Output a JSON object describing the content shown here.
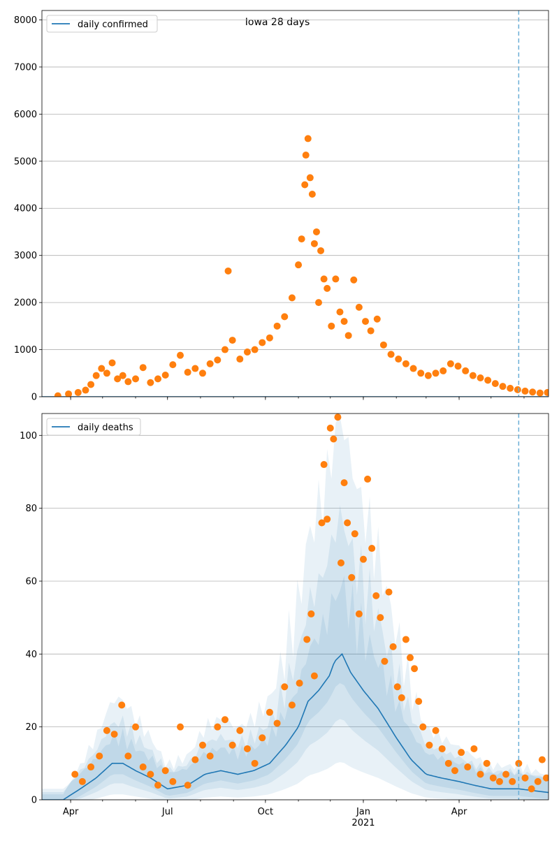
{
  "title": "Iowa 28 days",
  "x_ticks": [
    {
      "date": "2020-04-01",
      "label": "Apr"
    },
    {
      "date": "2020-07-01",
      "label": "Jul"
    },
    {
      "date": "2020-10-01",
      "label": "Oct"
    },
    {
      "date": "2021-01-01",
      "label": "Jan"
    },
    {
      "date": "2021-04-01",
      "label": "Apr"
    }
  ],
  "x_year_label": "2021",
  "chart_data": [
    {
      "type": "scatter",
      "legend": "daily confirmed",
      "legend_position": "upper-left",
      "grid": "y",
      "xlim": [
        "2020-03-05",
        "2021-06-24"
      ],
      "ylim": [
        0,
        8200
      ],
      "yticks": [
        0,
        1000,
        2000,
        3000,
        4000,
        5000,
        6000,
        7000,
        8000
      ],
      "forecast_start": "2021-05-27",
      "colors": {
        "line": "#1f77b4",
        "points": "#ff7f0e",
        "forecast_line": "#6aaed6"
      },
      "series": [
        {
          "name": "daily confirmed",
          "kind": "line",
          "x": [
            "2020-03-05",
            "2021-06-24"
          ],
          "y": [
            0,
            0
          ]
        },
        {
          "kind": "points",
          "points": [
            [
              "2020-03-20",
              20
            ],
            [
              "2020-03-30",
              60
            ],
            [
              "2020-04-08",
              90
            ],
            [
              "2020-04-15",
              140
            ],
            [
              "2020-04-20",
              260
            ],
            [
              "2020-04-25",
              450
            ],
            [
              "2020-04-30",
              600
            ],
            [
              "2020-05-05",
              500
            ],
            [
              "2020-05-10",
              720
            ],
            [
              "2020-05-15",
              380
            ],
            [
              "2020-05-20",
              450
            ],
            [
              "2020-05-25",
              320
            ],
            [
              "2020-06-01",
              380
            ],
            [
              "2020-06-08",
              620
            ],
            [
              "2020-06-15",
              300
            ],
            [
              "2020-06-22",
              380
            ],
            [
              "2020-06-29",
              460
            ],
            [
              "2020-07-06",
              680
            ],
            [
              "2020-07-13",
              880
            ],
            [
              "2020-07-20",
              520
            ],
            [
              "2020-07-27",
              600
            ],
            [
              "2020-08-03",
              500
            ],
            [
              "2020-08-10",
              700
            ],
            [
              "2020-08-17",
              780
            ],
            [
              "2020-08-24",
              1000
            ],
            [
              "2020-08-27",
              2670
            ],
            [
              "2020-08-31",
              1200
            ],
            [
              "2020-09-07",
              800
            ],
            [
              "2020-09-14",
              950
            ],
            [
              "2020-09-21",
              1000
            ],
            [
              "2020-09-28",
              1150
            ],
            [
              "2020-10-05",
              1250
            ],
            [
              "2020-10-12",
              1500
            ],
            [
              "2020-10-19",
              1700
            ],
            [
              "2020-10-26",
              2100
            ],
            [
              "2020-11-01",
              2800
            ],
            [
              "2020-11-04",
              3350
            ],
            [
              "2020-11-07",
              4500
            ],
            [
              "2020-11-08",
              5130
            ],
            [
              "2020-11-10",
              5480
            ],
            [
              "2020-11-12",
              4650
            ],
            [
              "2020-11-14",
              4300
            ],
            [
              "2020-11-16",
              3250
            ],
            [
              "2020-11-18",
              3500
            ],
            [
              "2020-11-20",
              2000
            ],
            [
              "2020-11-22",
              3100
            ],
            [
              "2020-11-25",
              2500
            ],
            [
              "2020-11-28",
              2300
            ],
            [
              "2020-12-02",
              1500
            ],
            [
              "2020-12-06",
              2500
            ],
            [
              "2020-12-10",
              1800
            ],
            [
              "2020-12-14",
              1600
            ],
            [
              "2020-12-18",
              1300
            ],
            [
              "2020-12-23",
              2480
            ],
            [
              "2020-12-28",
              1900
            ],
            [
              "2021-01-03",
              1600
            ],
            [
              "2021-01-08",
              1400
            ],
            [
              "2021-01-14",
              1650
            ],
            [
              "2021-01-20",
              1100
            ],
            [
              "2021-01-27",
              900
            ],
            [
              "2021-02-03",
              800
            ],
            [
              "2021-02-10",
              700
            ],
            [
              "2021-02-17",
              600
            ],
            [
              "2021-02-24",
              500
            ],
            [
              "2021-03-03",
              450
            ],
            [
              "2021-03-10",
              500
            ],
            [
              "2021-03-17",
              550
            ],
            [
              "2021-03-24",
              700
            ],
            [
              "2021-03-31",
              650
            ],
            [
              "2021-04-07",
              550
            ],
            [
              "2021-04-14",
              450
            ],
            [
              "2021-04-21",
              400
            ],
            [
              "2021-04-28",
              350
            ],
            [
              "2021-05-05",
              280
            ],
            [
              "2021-05-12",
              220
            ],
            [
              "2021-05-19",
              180
            ],
            [
              "2021-05-26",
              150
            ],
            [
              "2021-06-02",
              120
            ],
            [
              "2021-06-09",
              100
            ],
            [
              "2021-06-16",
              80
            ],
            [
              "2021-06-23",
              90
            ]
          ]
        }
      ]
    },
    {
      "type": "line",
      "legend": "daily deaths",
      "legend_position": "upper-left",
      "grid": "y",
      "xlim": [
        "2020-03-05",
        "2021-06-24"
      ],
      "ylim": [
        0,
        106
      ],
      "yticks": [
        0,
        20,
        40,
        60,
        80,
        100
      ],
      "forecast_start": "2021-05-27",
      "colors": {
        "line": "#1f77b4",
        "points": "#ff7f0e",
        "band": "#1f77b4",
        "forecast_line": "#6aaed6"
      },
      "series": [
        {
          "name": "daily deaths",
          "kind": "line",
          "points": [
            [
              "2020-03-05",
              0
            ],
            [
              "2020-03-25",
              0
            ],
            [
              "2020-04-10",
              3
            ],
            [
              "2020-04-25",
              6
            ],
            [
              "2020-05-10",
              10
            ],
            [
              "2020-05-20",
              10
            ],
            [
              "2020-06-01",
              8
            ],
            [
              "2020-06-15",
              6
            ],
            [
              "2020-07-01",
              3
            ],
            [
              "2020-07-20",
              4
            ],
            [
              "2020-08-05",
              7
            ],
            [
              "2020-08-20",
              8
            ],
            [
              "2020-09-05",
              7
            ],
            [
              "2020-09-20",
              8
            ],
            [
              "2020-10-05",
              10
            ],
            [
              "2020-10-20",
              15
            ],
            [
              "2020-11-01",
              20
            ],
            [
              "2020-11-10",
              27
            ],
            [
              "2020-11-20",
              30
            ],
            [
              "2020-11-30",
              34
            ],
            [
              "2020-12-05",
              38
            ],
            [
              "2020-12-12",
              40
            ],
            [
              "2020-12-20",
              35
            ],
            [
              "2021-01-01",
              30
            ],
            [
              "2021-01-15",
              25
            ],
            [
              "2021-02-01",
              17
            ],
            [
              "2021-02-15",
              11
            ],
            [
              "2021-03-01",
              7
            ],
            [
              "2021-03-15",
              6
            ],
            [
              "2021-04-01",
              5
            ],
            [
              "2021-04-15",
              4
            ],
            [
              "2021-05-01",
              3
            ],
            [
              "2021-05-27",
              3
            ],
            [
              "2021-06-24",
              2
            ]
          ]
        },
        {
          "kind": "points",
          "points": [
            [
              "2020-04-05",
              7
            ],
            [
              "2020-04-12",
              5
            ],
            [
              "2020-04-20",
              9
            ],
            [
              "2020-04-28",
              12
            ],
            [
              "2020-05-05",
              19
            ],
            [
              "2020-05-12",
              18
            ],
            [
              "2020-05-19",
              26
            ],
            [
              "2020-05-25",
              12
            ],
            [
              "2020-06-01",
              20
            ],
            [
              "2020-06-08",
              9
            ],
            [
              "2020-06-15",
              7
            ],
            [
              "2020-06-22",
              4
            ],
            [
              "2020-06-29",
              8
            ],
            [
              "2020-07-06",
              5
            ],
            [
              "2020-07-13",
              20
            ],
            [
              "2020-07-20",
              4
            ],
            [
              "2020-07-27",
              11
            ],
            [
              "2020-08-03",
              15
            ],
            [
              "2020-08-10",
              12
            ],
            [
              "2020-08-17",
              20
            ],
            [
              "2020-08-24",
              22
            ],
            [
              "2020-08-31",
              15
            ],
            [
              "2020-09-07",
              19
            ],
            [
              "2020-09-14",
              14
            ],
            [
              "2020-09-21",
              10
            ],
            [
              "2020-09-28",
              17
            ],
            [
              "2020-10-05",
              24
            ],
            [
              "2020-10-12",
              21
            ],
            [
              "2020-10-19",
              31
            ],
            [
              "2020-10-26",
              26
            ],
            [
              "2020-11-02",
              32
            ],
            [
              "2020-11-09",
              44
            ],
            [
              "2020-11-13",
              51
            ],
            [
              "2020-11-16",
              34
            ],
            [
              "2020-11-23",
              76
            ],
            [
              "2020-11-25",
              92
            ],
            [
              "2020-11-28",
              77
            ],
            [
              "2020-12-01",
              102
            ],
            [
              "2020-12-04",
              99
            ],
            [
              "2020-12-08",
              105
            ],
            [
              "2020-12-11",
              65
            ],
            [
              "2020-12-14",
              87
            ],
            [
              "2020-12-17",
              76
            ],
            [
              "2020-12-21",
              61
            ],
            [
              "2020-12-24",
              73
            ],
            [
              "2020-12-28",
              51
            ],
            [
              "2021-01-01",
              66
            ],
            [
              "2021-01-05",
              88
            ],
            [
              "2021-01-09",
              69
            ],
            [
              "2021-01-13",
              56
            ],
            [
              "2021-01-17",
              50
            ],
            [
              "2021-01-21",
              38
            ],
            [
              "2021-01-25",
              57
            ],
            [
              "2021-01-29",
              42
            ],
            [
              "2021-02-02",
              31
            ],
            [
              "2021-02-06",
              28
            ],
            [
              "2021-02-10",
              44
            ],
            [
              "2021-02-14",
              39
            ],
            [
              "2021-02-18",
              36
            ],
            [
              "2021-02-22",
              27
            ],
            [
              "2021-02-26",
              20
            ],
            [
              "2021-03-04",
              15
            ],
            [
              "2021-03-10",
              19
            ],
            [
              "2021-03-16",
              14
            ],
            [
              "2021-03-22",
              10
            ],
            [
              "2021-03-28",
              8
            ],
            [
              "2021-04-03",
              13
            ],
            [
              "2021-04-09",
              9
            ],
            [
              "2021-04-15",
              14
            ],
            [
              "2021-04-21",
              7
            ],
            [
              "2021-04-27",
              10
            ],
            [
              "2021-05-03",
              6
            ],
            [
              "2021-05-09",
              5
            ],
            [
              "2021-05-15",
              7
            ],
            [
              "2021-05-21",
              5
            ],
            [
              "2021-05-27",
              10
            ],
            [
              "2021-06-02",
              6
            ],
            [
              "2021-06-08",
              3
            ],
            [
              "2021-06-14",
              5
            ],
            [
              "2021-06-18",
              11
            ],
            [
              "2021-06-22",
              6
            ]
          ]
        }
      ]
    }
  ]
}
